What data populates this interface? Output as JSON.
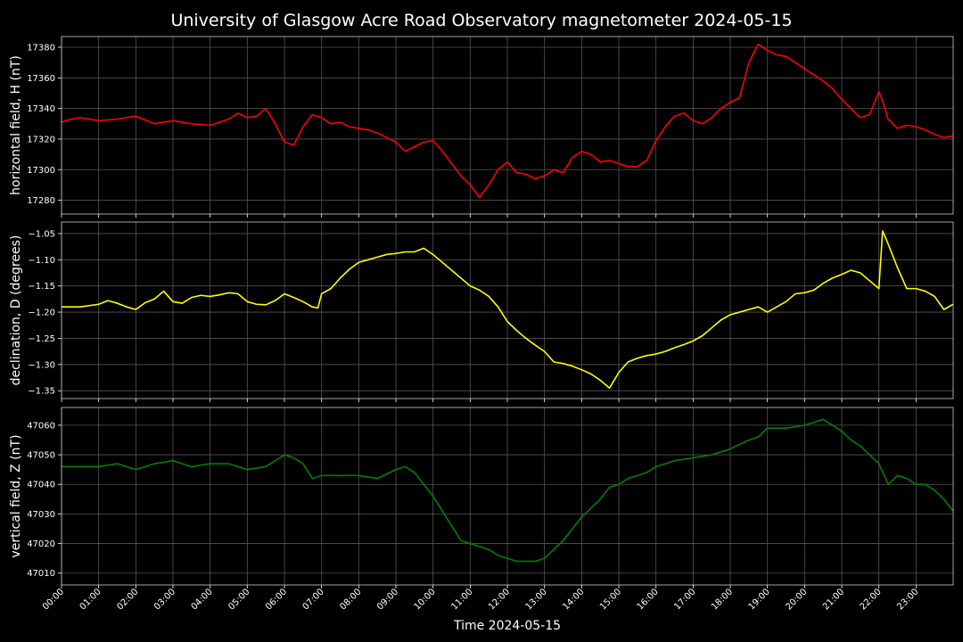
{
  "title": "University of Glasgow Acre Road Observatory magnetometer 2024-05-15",
  "xlabel": "Time 2024-05-15",
  "chart_data": {
    "type": "line",
    "title": "University of Glasgow Acre Road Observatory magnetometer 2024-05-15",
    "xlabel": "Time 2024-05-15",
    "x_unit": "hours",
    "xlim": [
      0,
      24
    ],
    "x_tick_labels": [
      "00:00",
      "01:00",
      "02:00",
      "03:00",
      "04:00",
      "05:00",
      "06:00",
      "07:00",
      "08:00",
      "09:00",
      "10:00",
      "11:00",
      "12:00",
      "13:00",
      "14:00",
      "15:00",
      "16:00",
      "17:00",
      "18:00",
      "19:00",
      "20:00",
      "21:00",
      "22:00",
      "23:00"
    ],
    "grid": true,
    "panels": [
      {
        "name": "horizontal field, H (nT)",
        "ylabel": "horizontal field, H (nT)",
        "color": "#ff0000",
        "ylim": [
          17271,
          17387
        ],
        "yticks": [
          17280,
          17300,
          17320,
          17340,
          17360,
          17380
        ],
        "x": [
          0,
          0.25,
          0.5,
          1,
          1.5,
          2,
          2.5,
          3,
          3.5,
          4,
          4.5,
          4.75,
          5,
          5.25,
          5.5,
          5.75,
          6,
          6.25,
          6.5,
          6.75,
          7,
          7.25,
          7.5,
          7.75,
          8,
          8.25,
          8.5,
          8.75,
          9,
          9.25,
          9.5,
          9.75,
          10,
          10.25,
          10.5,
          10.75,
          11,
          11.25,
          11.5,
          11.75,
          12,
          12.25,
          12.5,
          12.75,
          13,
          13.25,
          13.5,
          13.75,
          14,
          14.25,
          14.5,
          14.75,
          15,
          15.25,
          15.5,
          15.75,
          16,
          16.25,
          16.5,
          16.75,
          17,
          17.25,
          17.5,
          17.75,
          18,
          18.25,
          18.5,
          18.75,
          19,
          19.25,
          19.5,
          19.75,
          20,
          20.25,
          20.5,
          20.75,
          21,
          21.25,
          21.5,
          21.75,
          22,
          22.1,
          22.25,
          22.5,
          22.75,
          23,
          23.25,
          23.5,
          23.75,
          24
        ],
        "y": [
          17331,
          17333,
          17334,
          17332,
          17333,
          17335,
          17330,
          17332,
          17330,
          17329,
          17333,
          17337,
          17334,
          17335,
          17340,
          17330,
          17318,
          17316,
          17328,
          17336,
          17334,
          17330,
          17331,
          17328,
          17327,
          17326,
          17324,
          17321,
          17318,
          17312,
          17315,
          17318,
          17319,
          17312,
          17304,
          17296,
          17290,
          17282,
          17290,
          17300,
          17305,
          17298,
          17297,
          17294,
          17296,
          17300,
          17298,
          17308,
          17312,
          17310,
          17305,
          17306,
          17304,
          17302,
          17302,
          17306,
          17319,
          17328,
          17335,
          17337,
          17332,
          17330,
          17334,
          17340,
          17344,
          17347,
          17370,
          17382,
          17378,
          17375,
          17374,
          17370,
          17366,
          17362,
          17358,
          17353,
          17346,
          17340,
          17334,
          17336,
          17351,
          17345,
          17333,
          17327,
          17329,
          17328,
          17326,
          17323,
          17321,
          17322
        ]
      },
      {
        "name": "declination, D (degrees)",
        "ylabel": "declination, D (degrees)",
        "color": "#ffff00",
        "ylim": [
          -1.365,
          -1.028
        ],
        "yticks": [
          -1.35,
          -1.3,
          -1.25,
          -1.2,
          -1.15,
          -1.1,
          -1.05
        ],
        "x": [
          0,
          0.5,
          1,
          1.25,
          1.5,
          1.75,
          2,
          2.25,
          2.5,
          2.75,
          3,
          3.25,
          3.5,
          3.75,
          4,
          4.25,
          4.5,
          4.75,
          5,
          5.25,
          5.5,
          5.75,
          6,
          6.25,
          6.5,
          6.75,
          6.9,
          7,
          7.25,
          7.5,
          7.75,
          8,
          8.25,
          8.5,
          8.75,
          9,
          9.25,
          9.5,
          9.75,
          10,
          10.25,
          10.5,
          10.75,
          11,
          11.25,
          11.5,
          11.75,
          12,
          12.25,
          12.5,
          12.75,
          13,
          13.25,
          13.5,
          13.75,
          14,
          14.25,
          14.5,
          14.75,
          15,
          15.25,
          15.5,
          15.75,
          16,
          16.25,
          16.5,
          16.75,
          17,
          17.25,
          17.5,
          17.75,
          18,
          18.25,
          18.5,
          18.75,
          19,
          19.25,
          19.5,
          19.75,
          20,
          20.25,
          20.5,
          20.75,
          21,
          21.25,
          21.5,
          21.75,
          22,
          22.1,
          22.25,
          22.5,
          22.75,
          23,
          23.25,
          23.5,
          23.75,
          24
        ],
        "y": [
          -1.19,
          -1.19,
          -1.185,
          -1.178,
          -1.183,
          -1.19,
          -1.195,
          -1.182,
          -1.175,
          -1.16,
          -1.18,
          -1.183,
          -1.172,
          -1.168,
          -1.17,
          -1.167,
          -1.163,
          -1.165,
          -1.18,
          -1.185,
          -1.186,
          -1.178,
          -1.165,
          -1.172,
          -1.18,
          -1.19,
          -1.192,
          -1.165,
          -1.155,
          -1.135,
          -1.118,
          -1.105,
          -1.1,
          -1.095,
          -1.09,
          -1.088,
          -1.085,
          -1.085,
          -1.078,
          -1.09,
          -1.105,
          -1.12,
          -1.135,
          -1.15,
          -1.158,
          -1.17,
          -1.19,
          -1.218,
          -1.235,
          -1.25,
          -1.263,
          -1.275,
          -1.295,
          -1.298,
          -1.303,
          -1.31,
          -1.318,
          -1.33,
          -1.345,
          -1.315,
          -1.295,
          -1.288,
          -1.283,
          -1.28,
          -1.275,
          -1.268,
          -1.262,
          -1.255,
          -1.245,
          -1.23,
          -1.215,
          -1.205,
          -1.2,
          -1.195,
          -1.19,
          -1.2,
          -1.19,
          -1.18,
          -1.165,
          -1.163,
          -1.158,
          -1.145,
          -1.135,
          -1.128,
          -1.12,
          -1.125,
          -1.14,
          -1.155,
          -1.045,
          -1.07,
          -1.115,
          -1.155,
          -1.155,
          -1.16,
          -1.17,
          -1.195,
          -1.185
        ]
      },
      {
        "name": "vertical field, Z (nT)",
        "ylabel": "vertical field, Z (nT)",
        "color": "#008000",
        "ylim": [
          47006,
          47066
        ],
        "yticks": [
          47010,
          47020,
          47030,
          47040,
          47050,
          47060
        ],
        "x": [
          0,
          0.5,
          1,
          1.5,
          2,
          2.5,
          3,
          3.5,
          4,
          4.5,
          5,
          5.5,
          6,
          6.25,
          6.5,
          6.75,
          7,
          7.5,
          8,
          8.5,
          9,
          9.25,
          9.5,
          9.75,
          10,
          10.25,
          10.5,
          10.75,
          11,
          11.25,
          11.5,
          11.75,
          12,
          12.25,
          12.5,
          12.75,
          13,
          13.25,
          13.5,
          13.75,
          14,
          14.25,
          14.5,
          14.75,
          15,
          15.25,
          15.5,
          15.75,
          16,
          16.5,
          17,
          17.5,
          18,
          18.5,
          18.75,
          19,
          19.5,
          20,
          20.25,
          20.5,
          20.75,
          21,
          21.25,
          21.5,
          21.75,
          22,
          22.25,
          22.5,
          22.75,
          23,
          23.25,
          23.5,
          23.75,
          24
        ],
        "y": [
          47046,
          47046,
          47046,
          47047,
          47045,
          47047,
          47048,
          47046,
          47047,
          47047,
          47045,
          47046,
          47050,
          47049,
          47047,
          47042,
          47043,
          47043,
          47043,
          47042,
          47045,
          47046,
          47044,
          47040,
          47036,
          47031,
          47026,
          47021,
          47020,
          47019,
          47018,
          47016,
          47015,
          47014,
          47014,
          47014,
          47015,
          47018,
          47021,
          47025,
          47029,
          47032,
          47035,
          47039,
          47040,
          47042,
          47043,
          47044,
          47046,
          47048,
          47049,
          47050,
          47052,
          47055,
          47056,
          47059,
          47059,
          47060,
          47061,
          47062,
          47060,
          47058,
          47055,
          47053,
          47050,
          47047,
          47040,
          47043,
          47042,
          47040,
          47040,
          47038,
          47035,
          47031
        ]
      }
    ]
  }
}
